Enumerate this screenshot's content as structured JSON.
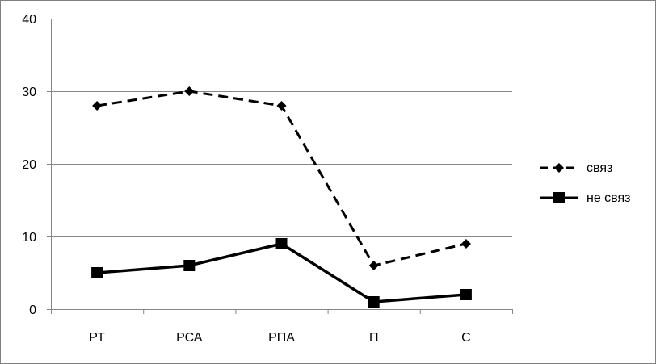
{
  "chart_data": {
    "type": "line",
    "title": "",
    "xlabel": "",
    "ylabel": "",
    "categories": [
      "РТ",
      "РСА",
      "РПА",
      "П",
      "С"
    ],
    "ylim": [
      0,
      40
    ],
    "yticks": [
      0,
      10,
      20,
      30,
      40
    ],
    "grid": true,
    "legend_position": "right",
    "series": [
      {
        "name": "связ",
        "values": [
          28,
          30,
          28,
          6,
          9
        ],
        "line_style": "dashed",
        "marker": "diamond",
        "color": "#000000"
      },
      {
        "name": "не связ",
        "values": [
          5,
          6,
          9,
          1,
          2
        ],
        "line_style": "solid",
        "marker": "square",
        "color": "#000000"
      }
    ]
  }
}
